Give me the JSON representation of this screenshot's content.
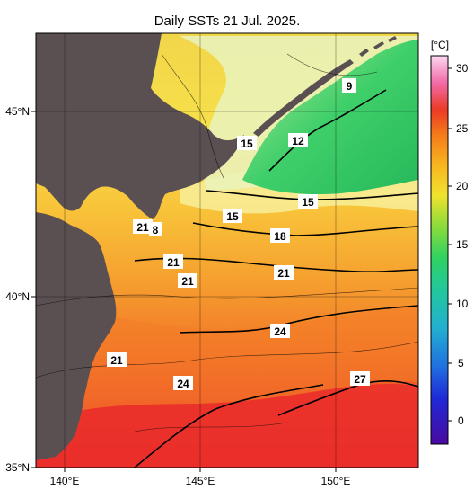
{
  "title": "Daily SSTs 21 Jul. 2025.",
  "map": {
    "lon_ticks": [
      "140°E",
      "145°E",
      "150°E"
    ],
    "lat_ticks": [
      "45°N",
      "40°N",
      "35°N"
    ]
  },
  "colorbar": {
    "unit": "[°C]",
    "ticks": [
      "30",
      "25",
      "20",
      "15",
      "10",
      "5",
      "0"
    ],
    "colors": [
      "#5a0aa8",
      "#1f1ad8",
      "#1f6ad8",
      "#22a8c8",
      "#22c8a0",
      "#2ed36a",
      "#7ad83a",
      "#cfe23a",
      "#f4e22c",
      "#f8b21e",
      "#f4781a",
      "#ec3a24",
      "#f03a6a",
      "#f67ab6",
      "#fbd0ec"
    ]
  },
  "contour_labels": [
    "9",
    "12",
    "15",
    "15",
    "15",
    "18",
    "21",
    "21",
    "21",
    "21",
    "8",
    "21",
    "24",
    "24",
    "27"
  ]
}
